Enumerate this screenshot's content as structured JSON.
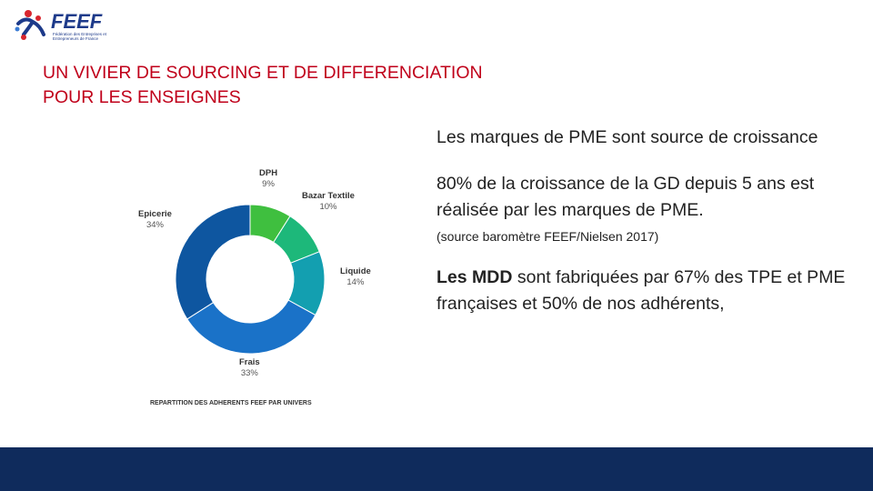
{
  "logo": {
    "text": "FEEF",
    "subtitle": "Fédération des Entreprises et Entrepreneurs de France"
  },
  "title_line1": "UN VIVIER DE SOURCING ET DE DIFFERENCIATION",
  "title_line2": "POUR LES ENSEIGNES",
  "chart_data": {
    "type": "pie",
    "donut": true,
    "title": "REPARTITION DES ADHERENTS FEEF PAR UNIVERS",
    "categories": [
      "DPH",
      "Bazar Textile",
      "Liquide",
      "Frais",
      "Epicerie"
    ],
    "values": [
      9,
      10,
      14,
      33,
      34
    ],
    "labels": [
      "9%",
      "10%",
      "14%",
      "33%",
      "34%"
    ],
    "colors": [
      "#3fbf3f",
      "#1db87a",
      "#139fb0",
      "#1a72c8",
      "#0e56a0"
    ]
  },
  "paragraphs": {
    "p1": "Les marques de PME sont source de croissance",
    "p2": "80% de la croissance de la GD depuis 5 ans est réalisée par les marques de PME.",
    "p3": "(source baromètre FEEF/Nielsen 2017)",
    "p4_bold": "Les MDD",
    "p4_rest": " sont fabriquées par 67% des TPE et PME françaises et 50% de nos adhérents,"
  },
  "colors": {
    "title": "#c0001a",
    "footer": "#0f2b5c",
    "logo": "#1d3a8a"
  }
}
